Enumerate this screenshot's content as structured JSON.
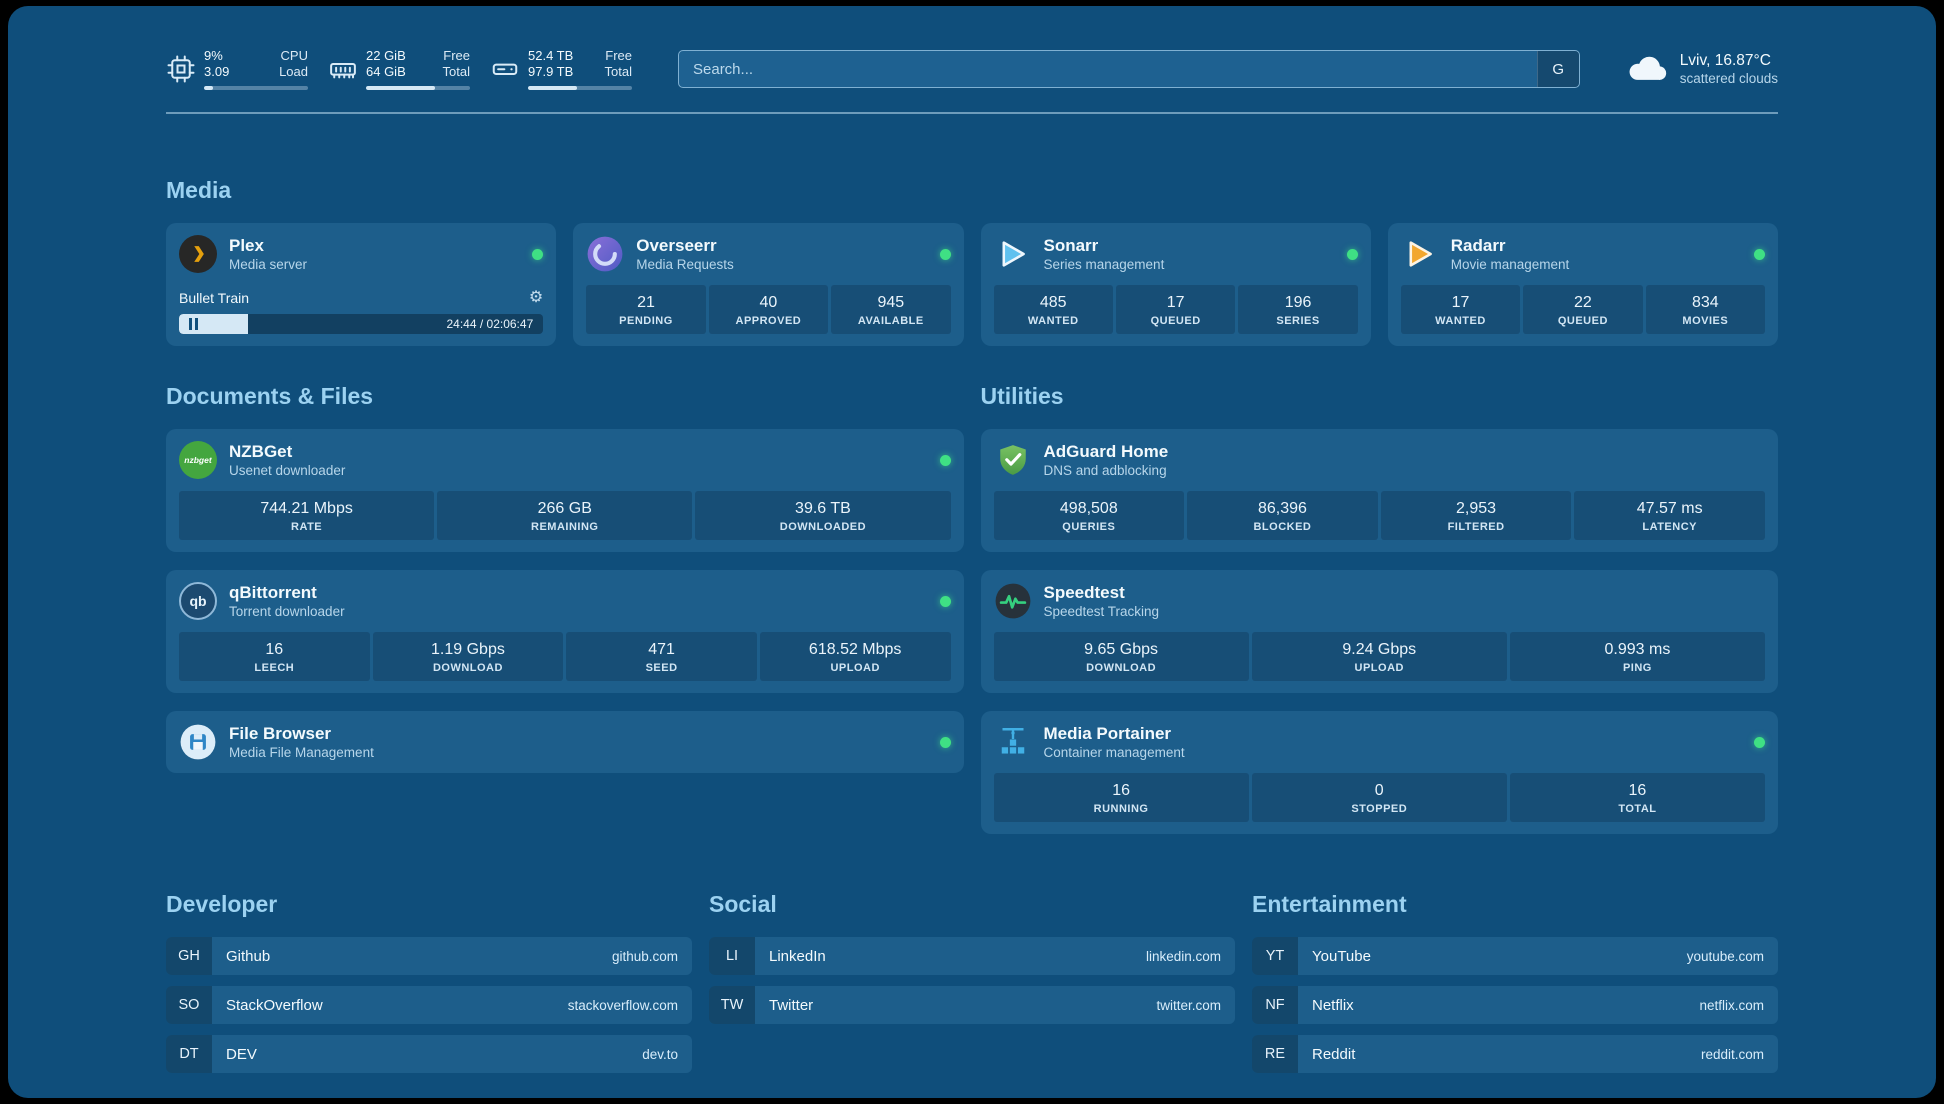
{
  "header": {
    "metrics": [
      {
        "value_top": "9%",
        "value_bottom": "3.09",
        "label_top": "CPU",
        "label_bottom": "Load",
        "progress_pct": 9
      },
      {
        "value_top": "22 GiB",
        "value_bottom": "64 GiB",
        "label_top": "Free",
        "label_bottom": "Total",
        "progress_pct": 66
      },
      {
        "value_top": "52.4 TB",
        "value_bottom": "97.9 TB",
        "label_top": "Free",
        "label_bottom": "Total",
        "progress_pct": 47
      }
    ],
    "search": {
      "placeholder": "Search...",
      "button_label": "G"
    },
    "weather": {
      "location": "Lviv, 16.87°C",
      "condition": "scattered clouds"
    }
  },
  "sections": {
    "media": {
      "title": "Media",
      "plex": {
        "name": "Plex",
        "subtitle": "Media server",
        "now_playing": "Bullet Train",
        "time": "24:44 / 02:06:47",
        "progress_pct": 19
      },
      "overseerr": {
        "name": "Overseerr",
        "subtitle": "Media Requests",
        "stats": [
          {
            "value": "21",
            "label": "PENDING"
          },
          {
            "value": "40",
            "label": "APPROVED"
          },
          {
            "value": "945",
            "label": "AVAILABLE"
          }
        ]
      },
      "sonarr": {
        "name": "Sonarr",
        "subtitle": "Series management",
        "stats": [
          {
            "value": "485",
            "label": "WANTED"
          },
          {
            "value": "17",
            "label": "QUEUED"
          },
          {
            "value": "196",
            "label": "SERIES"
          }
        ]
      },
      "radarr": {
        "name": "Radarr",
        "subtitle": "Movie management",
        "stats": [
          {
            "value": "17",
            "label": "WANTED"
          },
          {
            "value": "22",
            "label": "QUEUED"
          },
          {
            "value": "834",
            "label": "MOVIES"
          }
        ]
      }
    },
    "documents": {
      "title": "Documents & Files",
      "nzbget": {
        "name": "NZBGet",
        "subtitle": "Usenet downloader",
        "icon_text": "nzbget",
        "stats": [
          {
            "value": "744.21 Mbps",
            "label": "RATE"
          },
          {
            "value": "266 GB",
            "label": "REMAINING"
          },
          {
            "value": "39.6 TB",
            "label": "DOWNLOADED"
          }
        ]
      },
      "qbittorrent": {
        "name": "qBittorrent",
        "subtitle": "Torrent downloader",
        "icon_text": "qb",
        "stats": [
          {
            "value": "16",
            "label": "LEECH"
          },
          {
            "value": "1.19 Gbps",
            "label": "DOWNLOAD"
          },
          {
            "value": "471",
            "label": "SEED"
          },
          {
            "value": "618.52 Mbps",
            "label": "UPLOAD"
          }
        ]
      },
      "filebrowser": {
        "name": "File Browser",
        "subtitle": "Media File Management"
      }
    },
    "utilities": {
      "title": "Utilities",
      "adguard": {
        "name": "AdGuard Home",
        "subtitle": "DNS and adblocking",
        "stats": [
          {
            "value": "498,508",
            "label": "QUERIES"
          },
          {
            "value": "86,396",
            "label": "BLOCKED"
          },
          {
            "value": "2,953",
            "label": "FILTERED"
          },
          {
            "value": "47.57 ms",
            "label": "LATENCY"
          }
        ]
      },
      "speedtest": {
        "name": "Speedtest",
        "subtitle": "Speedtest Tracking",
        "stats": [
          {
            "value": "9.65 Gbps",
            "label": "DOWNLOAD"
          },
          {
            "value": "9.24 Gbps",
            "label": "UPLOAD"
          },
          {
            "value": "0.993 ms",
            "label": "PING"
          }
        ]
      },
      "portainer": {
        "name": "Media Portainer",
        "subtitle": "Container management",
        "stats": [
          {
            "value": "16",
            "label": "RUNNING"
          },
          {
            "value": "0",
            "label": "STOPPED"
          },
          {
            "value": "16",
            "label": "TOTAL"
          }
        ]
      }
    }
  },
  "bookmarks": [
    {
      "title": "Developer",
      "items": [
        {
          "abbr": "GH",
          "name": "Github",
          "url": "github.com"
        },
        {
          "abbr": "SO",
          "name": "StackOverflow",
          "url": "stackoverflow.com"
        },
        {
          "abbr": "DT",
          "name": "DEV",
          "url": "dev.to"
        }
      ]
    },
    {
      "title": "Social",
      "items": [
        {
          "abbr": "LI",
          "name": "LinkedIn",
          "url": "linkedin.com"
        },
        {
          "abbr": "TW",
          "name": "Twitter",
          "url": "twitter.com"
        }
      ]
    },
    {
      "title": "Entertainment",
      "items": [
        {
          "abbr": "YT",
          "name": "YouTube",
          "url": "youtube.com"
        },
        {
          "abbr": "NF",
          "name": "Netflix",
          "url": "netflix.com"
        },
        {
          "abbr": "RE",
          "name": "Reddit",
          "url": "reddit.com"
        }
      ]
    }
  ]
}
